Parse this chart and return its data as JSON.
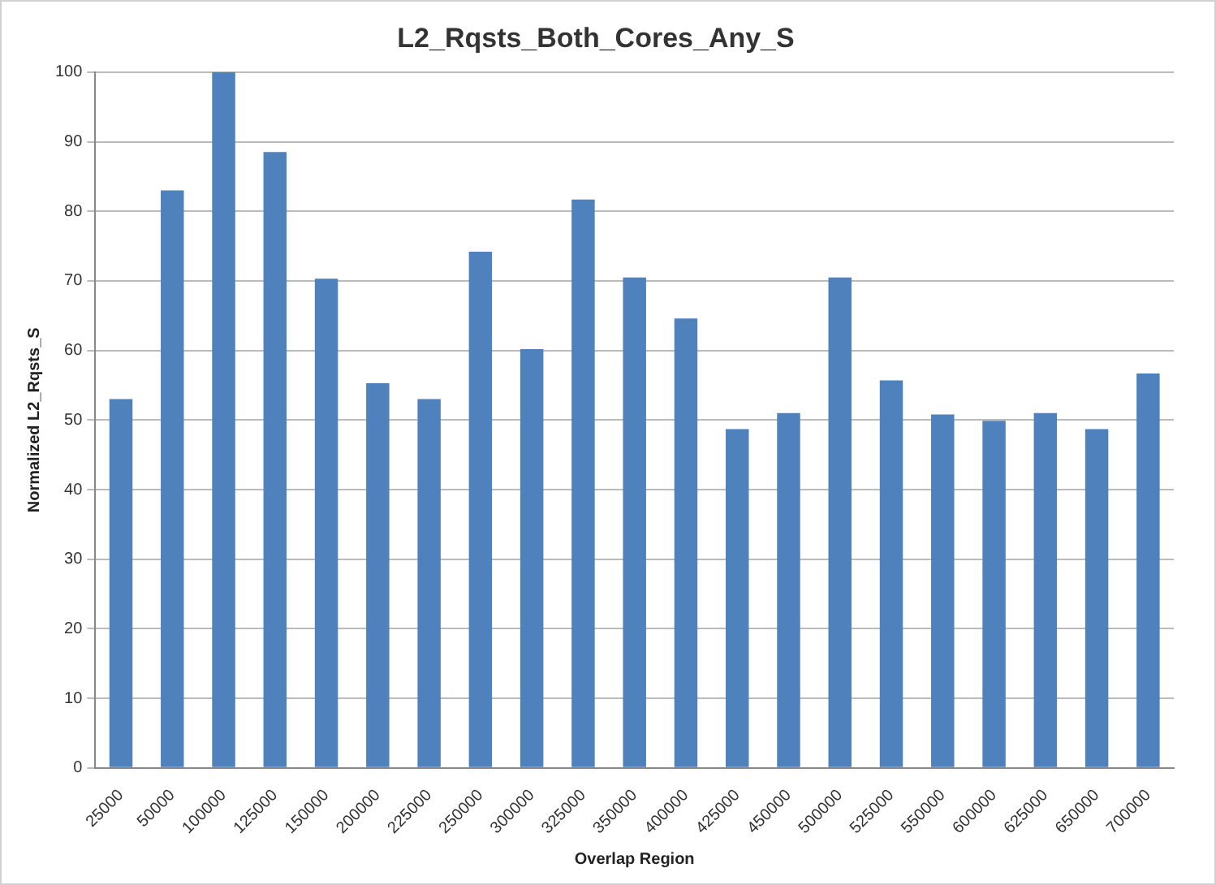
{
  "chart_data": {
    "type": "bar",
    "title": "L2_Rqsts_Both_Cores_Any_S",
    "xlabel": "Overlap Region",
    "ylabel": "Normalized L2_Rqsts_S",
    "categories": [
      "25000",
      "50000",
      "100000",
      "125000",
      "150000",
      "200000",
      "225000",
      "250000",
      "300000",
      "325000",
      "350000",
      "400000",
      "425000",
      "450000",
      "500000",
      "525000",
      "550000",
      "600000",
      "625000",
      "650000",
      "700000"
    ],
    "values": [
      53,
      83,
      100,
      88.5,
      70.3,
      55.3,
      53,
      74.2,
      60.2,
      81.7,
      70.5,
      64.6,
      48.7,
      51,
      70.5,
      55.7,
      50.8,
      49.9,
      51,
      48.7,
      56.7
    ],
    "color": "#4f81bd",
    "ylim": [
      0,
      100
    ],
    "yticks": [
      0,
      10,
      20,
      30,
      40,
      50,
      60,
      70,
      80,
      90,
      100
    ],
    "grid": "y",
    "legend": false
  }
}
